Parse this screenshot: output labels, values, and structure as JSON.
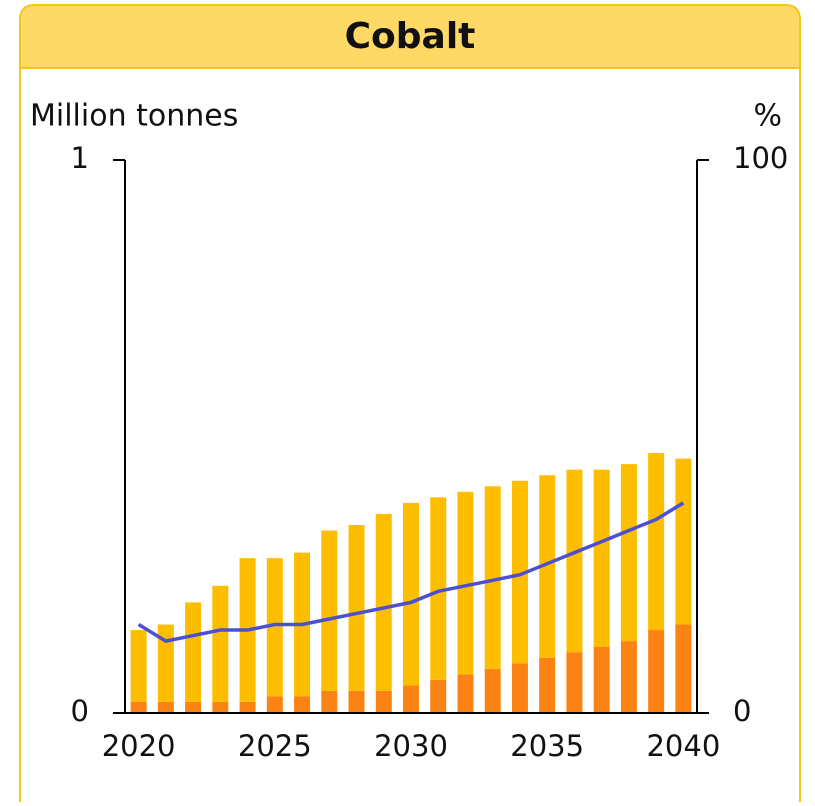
{
  "chart_data": {
    "type": "bar",
    "title": "Cobalt",
    "ylabel": "Million tonnes",
    "y2label": "%",
    "x": [
      2020,
      2021,
      2022,
      2023,
      2024,
      2025,
      2026,
      2027,
      2028,
      2029,
      2030,
      2031,
      2032,
      2033,
      2034,
      2035,
      2036,
      2037,
      2038,
      2039,
      2040
    ],
    "xlim": [
      2019.5,
      2040.5
    ],
    "xticks": [
      2020,
      2025,
      2030,
      2035,
      2040
    ],
    "ylim": [
      0,
      1
    ],
    "yticks": [
      0,
      1
    ],
    "y2lim": [
      0,
      100
    ],
    "y2ticks": [
      0,
      100
    ],
    "stacked": true,
    "series": [
      {
        "type": "bar",
        "color": "#fb8314",
        "values": [
          0.02,
          0.02,
          0.02,
          0.02,
          0.02,
          0.03,
          0.03,
          0.04,
          0.04,
          0.04,
          0.05,
          0.06,
          0.07,
          0.08,
          0.09,
          0.1,
          0.11,
          0.12,
          0.13,
          0.15,
          0.16
        ]
      },
      {
        "type": "bar",
        "color": "#fdbe00",
        "values": [
          0.13,
          0.14,
          0.18,
          0.21,
          0.26,
          0.25,
          0.26,
          0.29,
          0.3,
          0.32,
          0.33,
          0.33,
          0.33,
          0.33,
          0.33,
          0.33,
          0.33,
          0.32,
          0.32,
          0.32,
          0.3
        ]
      },
      {
        "type": "line",
        "axis": "y2",
        "color": "#4b4fd0",
        "values": [
          16,
          13,
          14,
          15,
          15,
          16,
          16,
          17,
          18,
          19,
          20,
          22,
          23,
          24,
          25,
          27,
          29,
          31,
          33,
          35,
          38
        ]
      }
    ]
  }
}
